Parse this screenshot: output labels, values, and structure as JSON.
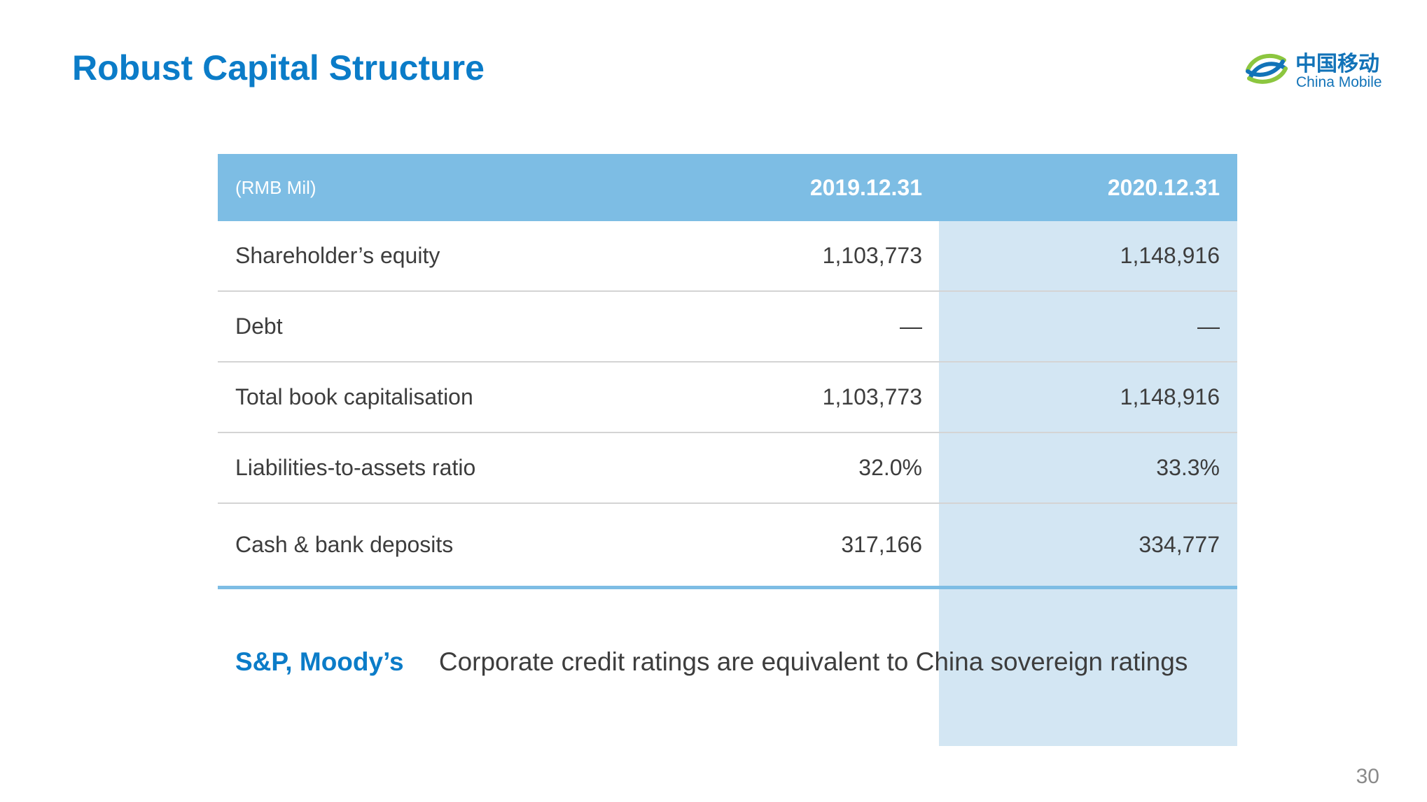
{
  "title": "Robust Capital Structure",
  "logo": {
    "name_cn": "中国移动",
    "name_en": "China Mobile",
    "icon": "china-mobile-logo-icon",
    "colors": {
      "green": "#8cc63f",
      "blue": "#1273b8"
    }
  },
  "table": {
    "unit": "(RMB Mil)",
    "columns": [
      "2019.12.31",
      "2020.12.31"
    ],
    "rows": [
      {
        "label": "Shareholder’s equity",
        "values": [
          "1,103,773",
          "1,148,916"
        ]
      },
      {
        "label": "Debt",
        "values": [
          "—",
          "—"
        ]
      },
      {
        "label": "Total book capitalisation",
        "values": [
          "1,103,773",
          "1,148,916"
        ]
      },
      {
        "label": "Liabilities-to-assets ratio",
        "values": [
          "32.0%",
          "33.3%"
        ]
      },
      {
        "label": "Cash & bank deposits",
        "values": [
          "317,166",
          "334,777"
        ]
      }
    ]
  },
  "rating": {
    "label": "S&P, Moody’s",
    "text": "Corporate credit ratings are equivalent to China sovereign ratings"
  },
  "page_number": "30",
  "colors": {
    "accent": "#0b7cc8",
    "header_bg": "#7dbde4",
    "highlight_col": "#d3e6f3",
    "text": "#3d3d3d"
  }
}
